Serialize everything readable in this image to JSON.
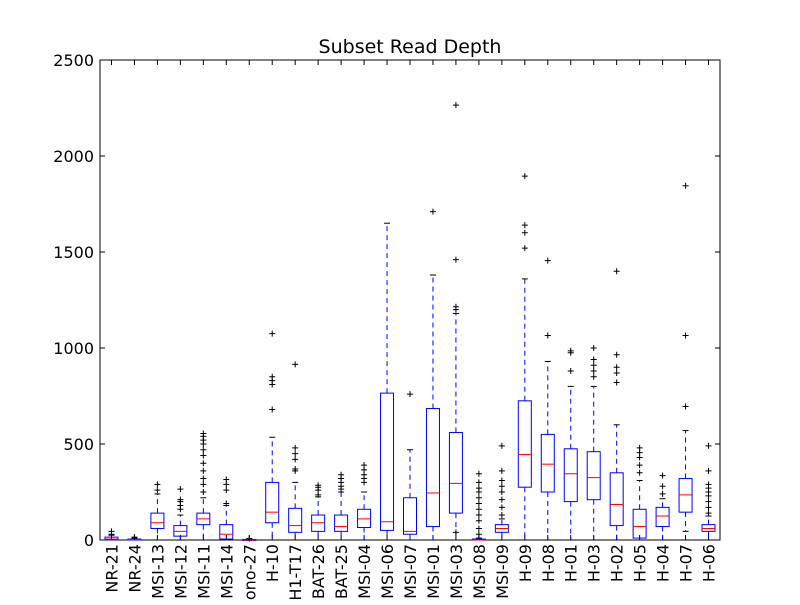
{
  "chart_data": {
    "type": "box",
    "title": "Subset Read Depth",
    "xlabel": "",
    "ylabel": "",
    "ylim": [
      0,
      2500
    ],
    "yticks": [
      0,
      500,
      1000,
      1500,
      2000,
      2500
    ],
    "grid": false,
    "colors": {
      "box": "#0000ff",
      "median": "#ff0000",
      "flier": "#000000",
      "axis": "#000000"
    },
    "categories": [
      "NR-21",
      "NR-24",
      "MSI-13",
      "MSI-12",
      "MSI-11",
      "MSI-14",
      "ono-27",
      "H-10",
      "H1-T17",
      "BAT-26",
      "BAT-25",
      "MSI-04",
      "MSI-06",
      "MSI-07",
      "MSI-01",
      "MSI-03",
      "MSI-08",
      "MSI-09",
      "H-09",
      "H-08",
      "H-01",
      "H-03",
      "H-02",
      "H-05",
      "H-04",
      "H-07",
      "H-06"
    ],
    "boxes": [
      {
        "label": "NR-21",
        "whislo": 0,
        "q1": 0,
        "med": 5,
        "q3": 15,
        "whishi": 25,
        "fliers": [
          30,
          45
        ]
      },
      {
        "label": "NR-24",
        "whislo": 0,
        "q1": 0,
        "med": 2,
        "q3": 5,
        "whishi": 10,
        "fliers": [
          15
        ]
      },
      {
        "label": "MSI-13",
        "whislo": 0,
        "q1": 60,
        "med": 90,
        "q3": 140,
        "whishi": 240,
        "fliers": [
          260,
          290
        ]
      },
      {
        "label": "MSI-12",
        "whislo": 0,
        "q1": 20,
        "med": 45,
        "q3": 75,
        "whishi": 130,
        "fliers": [
          160,
          180,
          200,
          210,
          265
        ]
      },
      {
        "label": "MSI-11",
        "whislo": 0,
        "q1": 80,
        "med": 110,
        "q3": 140,
        "whishi": 220,
        "fliers": [
          250,
          290,
          320,
          360,
          400,
          440,
          470,
          500,
          520,
          540,
          555
        ]
      },
      {
        "label": "MSI-14",
        "whislo": 0,
        "q1": 5,
        "med": 30,
        "q3": 80,
        "whishi": 180,
        "fliers": [
          190,
          260,
          290,
          315
        ]
      },
      {
        "label": "ono-27",
        "whislo": 0,
        "q1": 0,
        "med": 0,
        "q3": 3,
        "whishi": 5,
        "fliers": [
          8
        ]
      },
      {
        "label": "H-10",
        "whislo": 0,
        "q1": 90,
        "med": 145,
        "q3": 300,
        "whishi": 535,
        "fliers": [
          680,
          810,
          830,
          850,
          1075
        ]
      },
      {
        "label": "H1-T17",
        "whislo": 0,
        "q1": 40,
        "med": 75,
        "q3": 165,
        "whishi": 300,
        "fliers": [
          360,
          370,
          420,
          450,
          480,
          915
        ]
      },
      {
        "label": "BAT-26",
        "whislo": 0,
        "q1": 45,
        "med": 90,
        "q3": 130,
        "whishi": 225,
        "fliers": [
          235,
          260,
          275,
          285
        ]
      },
      {
        "label": "BAT-25",
        "whislo": 0,
        "q1": 45,
        "med": 70,
        "q3": 130,
        "whishi": 250,
        "fliers": [
          265,
          280,
          300,
          320,
          340
        ]
      },
      {
        "label": "MSI-04",
        "whislo": 0,
        "q1": 65,
        "med": 110,
        "q3": 160,
        "whishi": 250,
        "fliers": [
          300,
          320,
          340,
          365,
          390
        ]
      },
      {
        "label": "MSI-06",
        "whislo": 0,
        "q1": 50,
        "med": 95,
        "q3": 765,
        "whishi": 1650,
        "fliers": []
      },
      {
        "label": "MSI-07",
        "whislo": 0,
        "q1": 30,
        "med": 45,
        "q3": 220,
        "whishi": 470,
        "fliers": [
          760
        ]
      },
      {
        "label": "MSI-01",
        "whislo": 0,
        "q1": 70,
        "med": 245,
        "q3": 685,
        "whishi": 1380,
        "fliers": [
          1710
        ]
      },
      {
        "label": "MSI-03",
        "whislo": 0,
        "q1": 140,
        "med": 295,
        "q3": 560,
        "whishi": 1180,
        "fliers": [
          40,
          1200,
          1215,
          1460,
          2265
        ]
      },
      {
        "label": "MSI-08",
        "whislo": 0,
        "q1": 0,
        "med": 0,
        "q3": 5,
        "whishi": 10,
        "fliers": [
          30,
          60,
          100,
          130,
          160,
          190,
          220,
          250,
          270,
          300,
          345
        ]
      },
      {
        "label": "MSI-09",
        "whislo": 0,
        "q1": 40,
        "med": 60,
        "q3": 80,
        "whishi": 110,
        "fliers": [
          130,
          170,
          210,
          250,
          280,
          310,
          360,
          490
        ]
      },
      {
        "label": "H-09",
        "whislo": 0,
        "q1": 275,
        "med": 445,
        "q3": 725,
        "whishi": 1360,
        "fliers": [
          1520,
          1600,
          1640,
          1895
        ]
      },
      {
        "label": "H-08",
        "whislo": 0,
        "q1": 250,
        "med": 395,
        "q3": 550,
        "whishi": 930,
        "fliers": [
          1065,
          1455
        ]
      },
      {
        "label": "H-01",
        "whislo": 0,
        "q1": 200,
        "med": 345,
        "q3": 475,
        "whishi": 800,
        "fliers": [
          880,
          975,
          985
        ]
      },
      {
        "label": "H-03",
        "whislo": 0,
        "q1": 210,
        "med": 325,
        "q3": 460,
        "whishi": 800,
        "fliers": [
          850,
          880,
          910,
          940,
          1000
        ]
      },
      {
        "label": "H-02",
        "whislo": 0,
        "q1": 75,
        "med": 185,
        "q3": 350,
        "whishi": 600,
        "fliers": [
          820,
          870,
          900,
          965,
          1400
        ]
      },
      {
        "label": "H-05",
        "whislo": 0,
        "q1": 10,
        "med": 70,
        "q3": 160,
        "whishi": 310,
        "fliers": [
          350,
          390,
          430,
          455,
          480
        ]
      },
      {
        "label": "H-04",
        "whislo": 0,
        "q1": 70,
        "med": 125,
        "q3": 170,
        "whishi": 215,
        "fliers": [
          240,
          280,
          335
        ]
      },
      {
        "label": "H-07",
        "whislo": 45,
        "q1": 145,
        "med": 235,
        "q3": 320,
        "whishi": 570,
        "fliers": [
          695,
          1065,
          1845
        ]
      },
      {
        "label": "H-06",
        "whislo": 0,
        "q1": 45,
        "med": 60,
        "q3": 80,
        "whishi": 125,
        "fliers": [
          140,
          170,
          200,
          230,
          250,
          270,
          290,
          360,
          490
        ]
      }
    ]
  }
}
